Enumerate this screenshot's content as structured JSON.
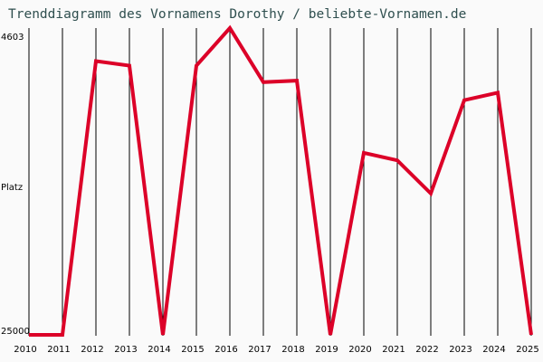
{
  "title": "Trenddiagramm des Vornamens Dorothy / beliebte-Vornamen.de",
  "y_axis": {
    "top_label": "4603",
    "middle_label": "Platz",
    "bottom_label": "25000"
  },
  "colors": {
    "line": "#dc0028",
    "title": "#2f4f4f",
    "grid": "#000000",
    "background": "#fafafa"
  },
  "chart_data": {
    "type": "line",
    "title": "Trenddiagramm des Vornamens Dorothy / beliebte-Vornamen.de",
    "xlabel": "",
    "ylabel": "Platz",
    "ylim": [
      25000,
      4603
    ],
    "y_inverted": true,
    "grid": "vertical",
    "categories": [
      "2010",
      "2011",
      "2012",
      "2013",
      "2014",
      "2015",
      "2016",
      "2017",
      "2018",
      "2019",
      "2020",
      "2021",
      "2022",
      "2023",
      "2024",
      "2025"
    ],
    "series": [
      {
        "name": "Dorothy",
        "values": [
          25000,
          25000,
          6800,
          7100,
          25000,
          7100,
          4603,
          8200,
          8100,
          25000,
          12900,
          13400,
          15600,
          9400,
          8900,
          25000
        ]
      }
    ]
  }
}
